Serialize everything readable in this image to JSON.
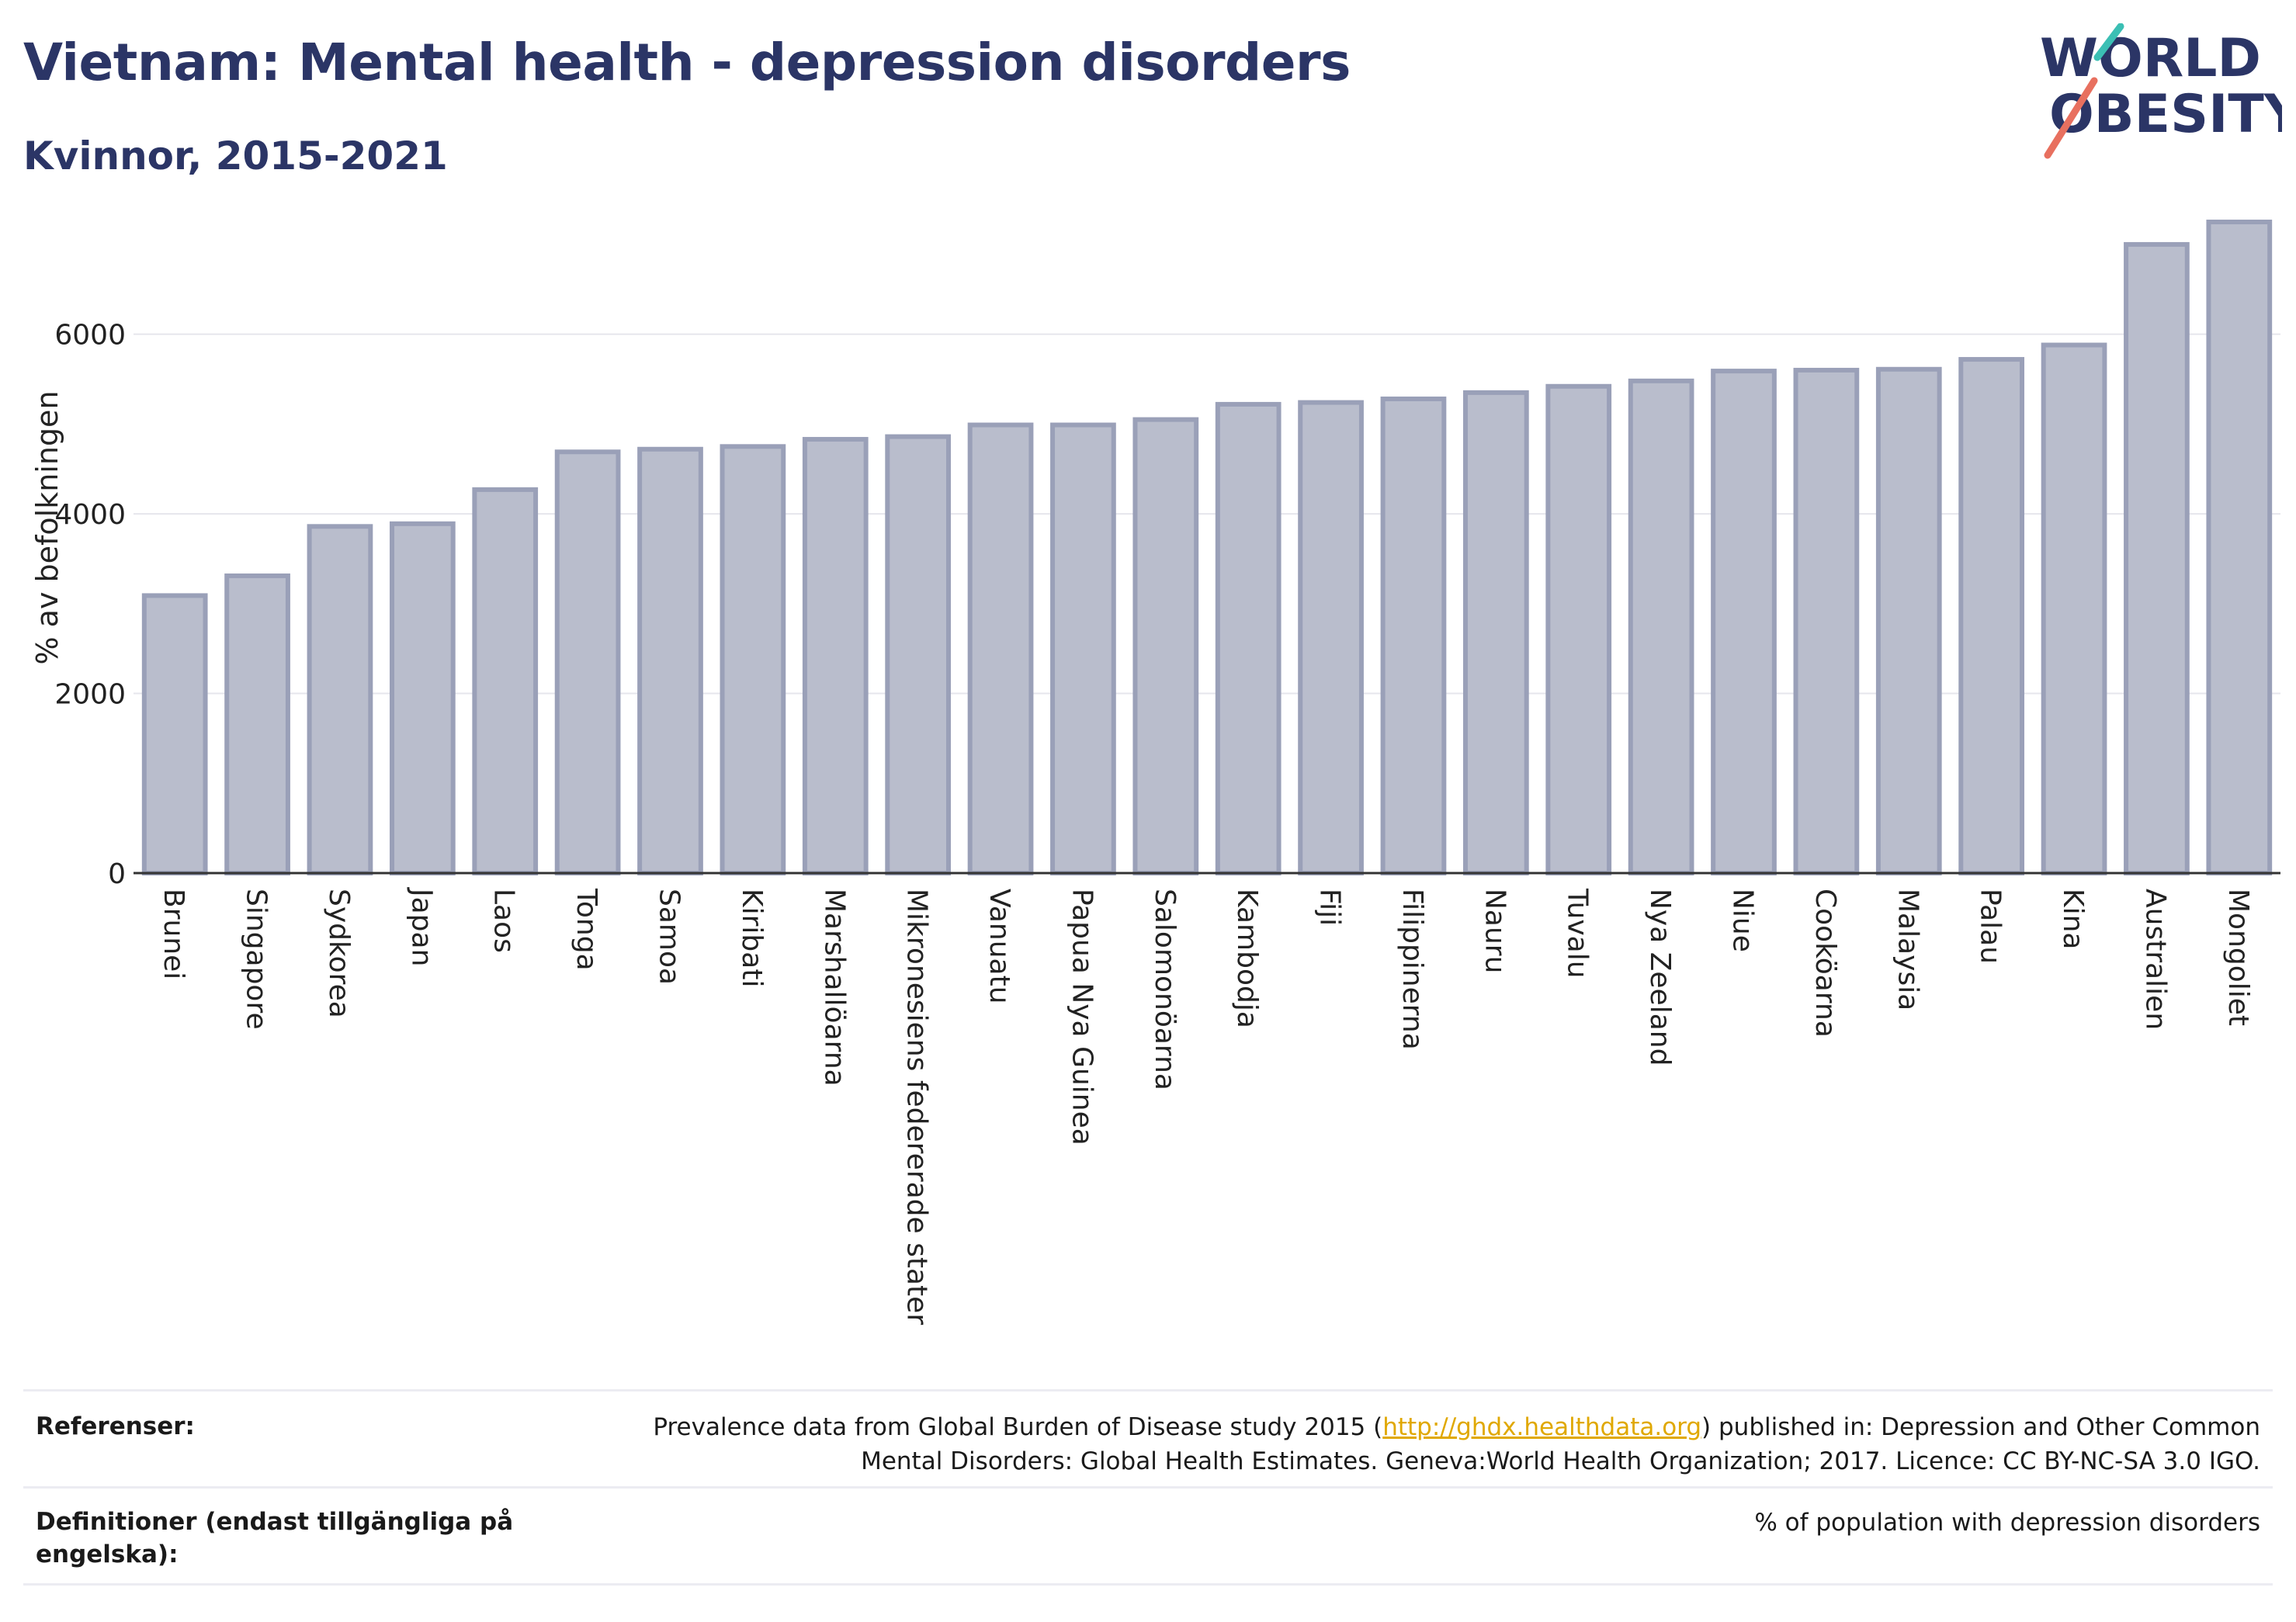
{
  "header": {
    "title": "Vietnam: Mental health - depression disorders",
    "subtitle": "Kvinnor, 2015-2021"
  },
  "logo": {
    "line1": "WORLD",
    "line2": "OBESITY",
    "accent_teal": "#3bbfb4",
    "accent_coral": "#e8705f",
    "text_color": "#2b3566"
  },
  "chart_data": {
    "type": "bar",
    "title": "Vietnam: Mental health - depression disorders",
    "subtitle": "Kvinnor, 2015-2021",
    "xlabel": "",
    "ylabel": "% av befolkningen",
    "ylim": [
      0,
      7600
    ],
    "yticks": [
      0,
      2000,
      4000,
      6000
    ],
    "grid": true,
    "bar_fill": "#b9bdcc",
    "bar_stroke": "#9aa0b8",
    "categories": [
      "Brunei",
      "Singapore",
      "Sydkorea",
      "Japan",
      "Laos",
      "Tonga",
      "Samoa",
      "Kiribati",
      "Marshallöarna",
      "Mikronesiens federerade stater",
      "Vanuatu",
      "Papua Nya Guinea",
      "Salomonöarna",
      "Kambodja",
      "Fiji",
      "Filippinerna",
      "Nauru",
      "Tuvalu",
      "Nya Zeeland",
      "Niue",
      "Cooköarna",
      "Malaysia",
      "Palau",
      "Kina",
      "Australien",
      "Mongoliet"
    ],
    "values": [
      3090,
      3310,
      3860,
      3890,
      4270,
      4690,
      4720,
      4750,
      4830,
      4860,
      4990,
      4990,
      5050,
      5220,
      5240,
      5280,
      5350,
      5420,
      5480,
      5590,
      5600,
      5610,
      5720,
      5880,
      7000,
      7250
    ]
  },
  "footer": {
    "references_label": "Referenser:",
    "references_text_before": "Prevalence data from Global Burden of Disease study 2015 (",
    "references_link": "http://ghdx.healthdata.org",
    "references_text_after": ") published in: Depression and Other Common Mental Disorders: Global Health Estimates. Geneva:World Health Organization; 2017. Licence: CC BY-NC-SA 3.0 IGO.",
    "definitions_label": "Definitioner (endast tillgängliga på engelska):",
    "definitions_text": "% of population with depression disorders"
  }
}
